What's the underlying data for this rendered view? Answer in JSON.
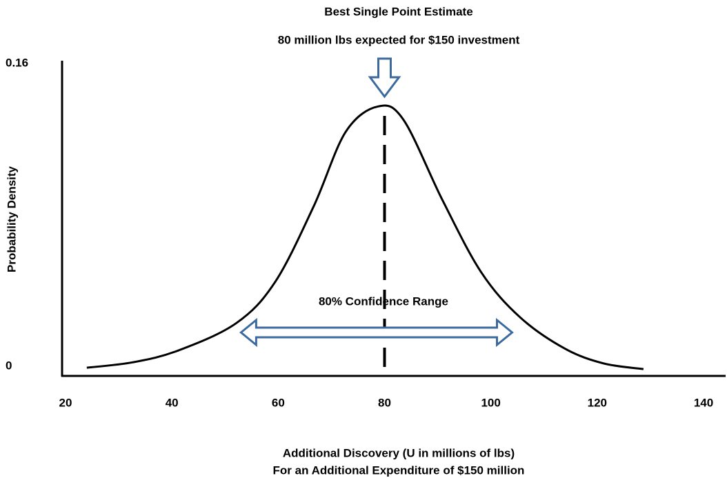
{
  "chart_data": {
    "type": "line",
    "title": "Best Single Point Estimate",
    "subtitle": "80 million lbs expected for  $150 investment",
    "x_label": "Additional Discovery (U in millions of lbs)",
    "x_label_2": "For an Additional Expenditure of $150 million",
    "y_label": "Probability Density",
    "x": [
      24,
      32.7,
      41.2,
      52.1,
      59.4,
      66.7,
      72.7,
      78.8,
      83.6,
      90.9,
      98.2,
      105.5,
      113.9,
      121.2,
      128.7
    ],
    "values": [
      0.0042,
      0.007,
      0.013,
      0.027,
      0.048,
      0.087,
      0.125,
      0.138,
      0.131,
      0.09,
      0.053,
      0.03,
      0.014,
      0.0064,
      0.0035
    ],
    "color": "#000000",
    "xlim": [
      20,
      140
    ],
    "xticks": [
      20,
      40,
      60,
      80,
      100,
      120,
      140
    ],
    "ylim": [
      0,
      0.16
    ],
    "yticks": [
      0,
      0.16
    ],
    "point_estimate": 80,
    "confidence_range": [
      53,
      104
    ],
    "confidence_label": "80% Confidence Range",
    "annotation_color": "#3d6a9e"
  }
}
